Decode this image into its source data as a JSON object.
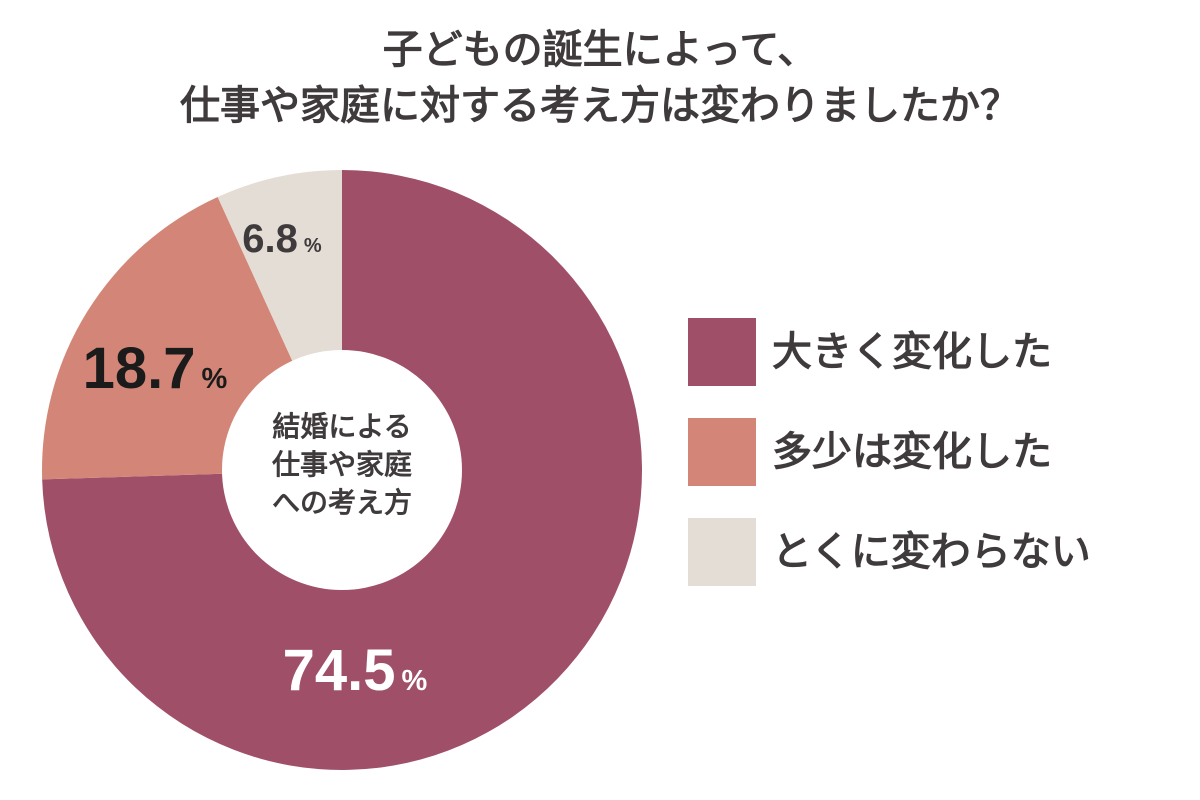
{
  "chart_data": {
    "type": "pie",
    "title_lines": [
      "子どもの誕生によって、",
      "仕事や家庭に対する考え方は変わりましたか？"
    ],
    "center_label_lines": [
      "結婚による",
      "仕事や家庭",
      "への考え方"
    ],
    "unit": "%",
    "slices": [
      {
        "label": "大きく変化した",
        "value": 74.5,
        "value_text": "74.5",
        "color": "#a04f69",
        "label_color": "#ffffff"
      },
      {
        "label": "多少は変化した",
        "value": 18.7,
        "value_text": "18.7",
        "color": "#d38677",
        "label_color": "#1b1b1b"
      },
      {
        "label": "とくに変わらない",
        "value": 6.8,
        "value_text": "6.8",
        "color": "#e4ddd6",
        "label_color": "#3f3a3b"
      }
    ],
    "legend_position": "right"
  }
}
